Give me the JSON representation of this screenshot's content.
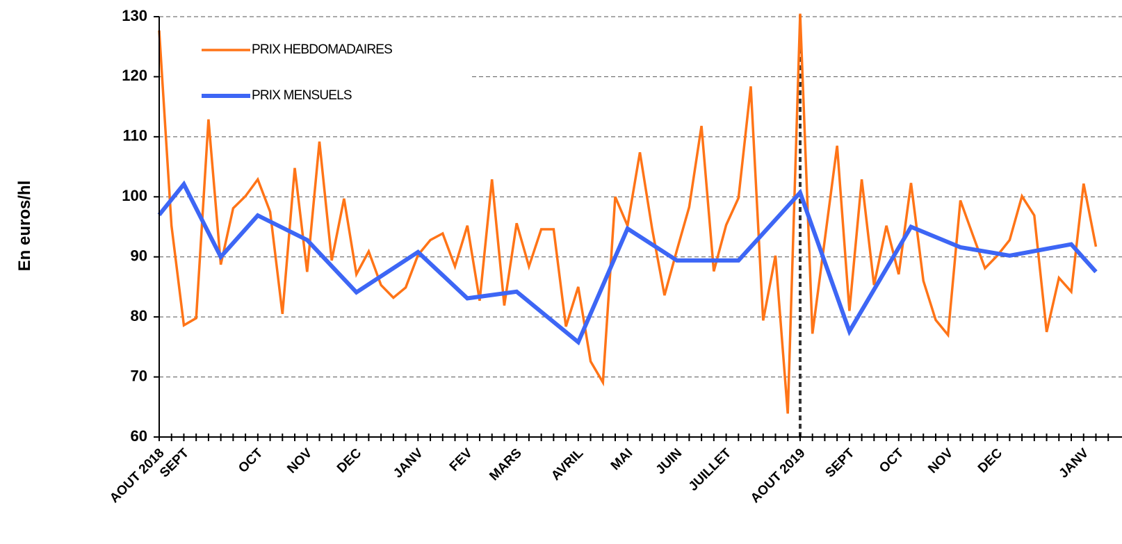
{
  "chart_data": {
    "type": "line",
    "y_label": "En euros/hl",
    "categories": [
      "AOUT 2018",
      null,
      "SEPT",
      null,
      null,
      null,
      null,
      null,
      "OCT",
      null,
      null,
      null,
      "NOV",
      null,
      null,
      null,
      "DEC",
      null,
      null,
      null,
      null,
      "JANV",
      null,
      null,
      null,
      "FEV",
      null,
      null,
      null,
      "MARS",
      null,
      null,
      null,
      null,
      "AVRIL",
      null,
      null,
      null,
      "MAI",
      null,
      null,
      null,
      "JUIN",
      null,
      null,
      null,
      "JUILLET",
      null,
      null,
      null,
      null,
      null,
      "AOUT 2019",
      null,
      null,
      null,
      "SEPT",
      null,
      null,
      null,
      "OCT",
      null,
      null,
      null,
      "NOV",
      null,
      null,
      null,
      "DEC",
      null,
      null,
      null,
      null,
      null,
      null,
      "JANV",
      null,
      null
    ],
    "series": [
      {
        "name": "PRIX HEBDOMADAIRES",
        "color": "#ff7417",
        "width": 3.5,
        "values": [
          127.7,
          95.2,
          78.6,
          79.8,
          112.9,
          88.7,
          98.1,
          100.1,
          102.9,
          97.5,
          80.5,
          104.8,
          87.5,
          109.2,
          89.4,
          99.7,
          87.1,
          90.9,
          85.3,
          83.2,
          84.9,
          90.3,
          92.8,
          93.9,
          88.4,
          95.2,
          82.7,
          102.9,
          81.9,
          95.6,
          88.4,
          94.6,
          94.6,
          78.4,
          85.0,
          72.6,
          69.1,
          100.0,
          95.2,
          107.4,
          94.6,
          83.6,
          91.1,
          98.3,
          111.8,
          87.6,
          95.3,
          99.8,
          118.4,
          79.4,
          90.2,
          63.9,
          130.5,
          77.2,
          92.8,
          108.5,
          81.0,
          102.9,
          85.3,
          95.2,
          87.1,
          102.3,
          86.0,
          79.5,
          77.0,
          99.4,
          93.7,
          88.1,
          90.2,
          92.8,
          100.1,
          96.9,
          77.5,
          86.5,
          84.2,
          102.2,
          91.7,
          null
        ]
      },
      {
        "name": "PRIX MENSUELS",
        "color": "#3d66f5",
        "width": 6,
        "connect_gaps": true,
        "values": [
          97.0,
          null,
          102.1,
          null,
          null,
          90.0,
          null,
          null,
          96.9,
          null,
          null,
          null,
          92.8,
          null,
          null,
          null,
          84.1,
          null,
          null,
          null,
          null,
          90.8,
          null,
          null,
          null,
          83.1,
          null,
          null,
          null,
          84.2,
          null,
          null,
          null,
          null,
          75.8,
          null,
          null,
          null,
          94.7,
          null,
          null,
          null,
          89.4,
          null,
          null,
          null,
          null,
          89.4,
          null,
          null,
          null,
          null,
          100.7,
          null,
          null,
          null,
          77.6,
          null,
          null,
          null,
          null,
          95.0,
          null,
          null,
          null,
          91.6,
          null,
          null,
          null,
          90.2,
          null,
          null,
          null,
          null,
          92.1,
          null,
          87.5,
          null
        ]
      }
    ],
    "ylim": [
      60,
      130
    ],
    "yticks": [
      60,
      70,
      80,
      90,
      100,
      110,
      120,
      130
    ],
    "grid": true
  }
}
